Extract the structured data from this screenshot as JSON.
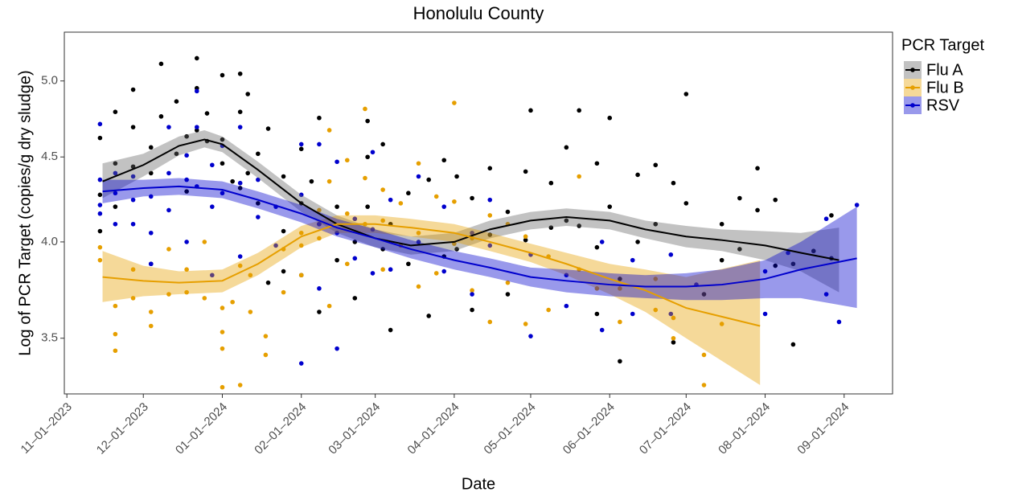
{
  "chart_data": {
    "type": "scatter",
    "title": "Honolulu County",
    "x_label": "Date",
    "y_label": "Log of PCR Target (copies/g dry sludge)",
    "legend_title": "PCR Target",
    "legend_position": "right",
    "log_y": true,
    "grid": false,
    "xlim": [
      "2023-10-31",
      "2024-09-20"
    ],
    "ylim": [
      3.24,
      5.35
    ],
    "xticks": [
      {
        "value": "2023-11-01",
        "label": "11–01–2023"
      },
      {
        "value": "2023-12-01",
        "label": "12–01–2023"
      },
      {
        "value": "2024-01-01",
        "label": "01–01–2024"
      },
      {
        "value": "2024-02-01",
        "label": "02–01–2024"
      },
      {
        "value": "2024-03-01",
        "label": "03–01–2024"
      },
      {
        "value": "2024-04-01",
        "label": "04–01–2024"
      },
      {
        "value": "2024-05-01",
        "label": "05–01–2024"
      },
      {
        "value": "2024-06-01",
        "label": "06–01–2024"
      },
      {
        "value": "2024-07-01",
        "label": "07–01–2024"
      },
      {
        "value": "2024-08-01",
        "label": "08–01–2024"
      },
      {
        "value": "2024-09-01",
        "label": "09–01–2024"
      }
    ],
    "yticks": [
      3.5,
      {
        "value": 4,
        "label": "4.0"
      },
      4.5,
      {
        "value": 5,
        "label": "5.0"
      }
    ],
    "series": [
      {
        "name": "Flu A",
        "color": "#000000",
        "x": [
          "2023-11-14",
          "2023-11-14",
          "2023-11-14",
          "2023-11-20",
          "2023-11-20",
          "2023-11-20",
          "2023-11-27",
          "2023-11-27",
          "2023-11-27",
          "2023-12-04",
          "2023-12-04",
          "2023-12-04",
          "2023-12-08",
          "2023-12-08",
          "2023-12-14",
          "2023-12-14",
          "2023-12-18",
          "2023-12-18",
          "2023-12-22",
          "2023-12-22",
          "2023-12-22",
          "2023-12-26",
          "2023-12-26",
          "2024-01-01",
          "2024-01-01",
          "2024-01-01",
          "2024-01-05",
          "2024-01-08",
          "2024-01-08",
          "2024-01-08",
          "2024-01-11",
          "2024-01-11",
          "2024-01-15",
          "2024-01-15",
          "2024-01-19",
          "2024-01-19",
          "2024-01-25",
          "2024-01-25",
          "2024-01-25",
          "2024-02-01",
          "2024-02-01",
          "2024-02-01",
          "2024-02-05",
          "2024-02-08",
          "2024-02-08",
          "2024-02-08",
          "2024-02-15",
          "2024-02-15",
          "2024-02-22",
          "2024-02-22",
          "2024-02-27",
          "2024-02-27",
          "2024-02-27",
          "2024-03-04",
          "2024-03-04",
          "2024-03-07",
          "2024-03-07",
          "2024-03-14",
          "2024-03-14",
          "2024-03-22",
          "2024-03-22",
          "2024-03-28",
          "2024-03-28",
          "2024-04-02",
          "2024-04-02",
          "2024-04-08",
          "2024-04-08",
          "2024-04-15",
          "2024-04-15",
          "2024-04-22",
          "2024-04-22",
          "2024-04-29",
          "2024-04-29",
          "2024-05-01",
          "2024-05-09",
          "2024-05-09",
          "2024-05-15",
          "2024-05-15",
          "2024-05-20",
          "2024-05-20",
          "2024-05-27",
          "2024-05-27",
          "2024-05-27",
          "2024-06-01",
          "2024-06-01",
          "2024-06-05",
          "2024-06-05",
          "2024-06-12",
          "2024-06-12",
          "2024-06-19",
          "2024-06-19",
          "2024-06-26",
          "2024-06-26",
          "2024-07-01",
          "2024-07-01",
          "2024-07-08",
          "2024-07-15",
          "2024-07-15",
          "2024-07-22",
          "2024-07-22",
          "2024-07-29",
          "2024-07-29",
          "2024-08-05",
          "2024-08-05",
          "2024-08-12",
          "2024-08-12",
          "2024-08-20",
          "2024-08-27",
          "2024-08-27"
        ],
        "values": [
          4.62,
          4.27,
          4.06,
          4.79,
          4.46,
          4.2,
          4.94,
          4.69,
          4.44,
          4.56,
          4.4,
          3.88,
          5.12,
          4.76,
          4.86,
          4.52,
          4.63,
          4.29,
          5.16,
          4.95,
          4.67,
          4.78,
          4.6,
          5.04,
          4.61,
          4.46,
          4.35,
          5.05,
          4.79,
          4.31,
          4.91,
          4.4,
          4.52,
          4.22,
          4.68,
          3.78,
          4.38,
          4.06,
          3.84,
          4.55,
          4.22,
          3.82,
          4.35,
          4.75,
          4.1,
          3.63,
          4.2,
          3.9,
          4.0,
          3.7,
          4.73,
          4.5,
          4.2,
          4.58,
          3.96,
          4.1,
          3.54,
          4.28,
          3.88,
          4.36,
          3.61,
          4.48,
          3.92,
          4.38,
          3.96,
          4.25,
          3.64,
          4.43,
          4.04,
          4.17,
          3.72,
          4.41,
          4.01,
          4.8,
          4.34,
          4.08,
          4.56,
          4.12,
          4.8,
          4.09,
          4.46,
          3.97,
          3.62,
          4.75,
          4.2,
          3.8,
          3.39,
          4.39,
          4.0,
          4.45,
          4.1,
          4.34,
          3.48,
          4.91,
          4.22,
          3.72,
          4.1,
          3.9,
          4.25,
          3.96,
          4.43,
          4.18,
          4.24,
          3.87,
          3.88,
          3.47,
          3.95,
          4.15,
          3.91
        ],
        "trend": {
          "x": [
            "2023-11-15",
            "2023-12-01",
            "2023-12-15",
            "2023-12-25",
            "2024-01-01",
            "2024-01-15",
            "2024-02-01",
            "2024-02-15",
            "2024-03-01",
            "2024-03-15",
            "2024-04-01",
            "2024-04-15",
            "2024-05-01",
            "2024-05-15",
            "2024-06-01",
            "2024-06-15",
            "2024-07-01",
            "2024-07-15",
            "2024-08-01",
            "2024-08-15",
            "2024-08-30"
          ],
          "values": [
            4.35,
            4.45,
            4.57,
            4.61,
            4.58,
            4.42,
            4.22,
            4.1,
            4.02,
            3.98,
            4.0,
            4.07,
            4.12,
            4.14,
            4.12,
            4.07,
            4.03,
            4.01,
            3.98,
            3.94,
            3.9
          ],
          "lower": [
            4.25,
            4.38,
            4.51,
            4.56,
            4.53,
            4.37,
            4.17,
            4.05,
            3.97,
            3.93,
            3.95,
            4.02,
            4.07,
            4.09,
            4.07,
            4.02,
            3.97,
            3.95,
            3.9,
            3.84,
            3.73
          ],
          "upper": [
            4.46,
            4.52,
            4.63,
            4.67,
            4.63,
            4.47,
            4.27,
            4.15,
            4.07,
            4.03,
            4.05,
            4.12,
            4.17,
            4.19,
            4.17,
            4.12,
            4.09,
            4.07,
            4.06,
            4.05,
            4.08
          ]
        }
      },
      {
        "name": "Flu B",
        "color": "#e69f00",
        "x": [
          "2023-11-14",
          "2023-11-14",
          "2023-11-20",
          "2023-11-20",
          "2023-11-20",
          "2023-11-27",
          "2023-11-27",
          "2023-12-04",
          "2023-12-04",
          "2023-12-11",
          "2023-12-11",
          "2023-12-18",
          "2023-12-18",
          "2023-12-25",
          "2023-12-25",
          "2024-01-01",
          "2024-01-01",
          "2024-01-01",
          "2024-01-01",
          "2024-01-05",
          "2024-01-08",
          "2024-01-08",
          "2024-01-12",
          "2024-01-12",
          "2024-01-18",
          "2024-01-18",
          "2024-01-25",
          "2024-01-25",
          "2024-02-01",
          "2024-02-01",
          "2024-02-01",
          "2024-02-08",
          "2024-02-08",
          "2024-02-12",
          "2024-02-12",
          "2024-02-12",
          "2024-02-19",
          "2024-02-19",
          "2024-02-19",
          "2024-02-26",
          "2024-02-26",
          "2024-02-26",
          "2024-03-04",
          "2024-03-04",
          "2024-03-04",
          "2024-03-11",
          "2024-03-11",
          "2024-03-18",
          "2024-03-18",
          "2024-03-18",
          "2024-03-25",
          "2024-03-25",
          "2024-04-01",
          "2024-04-01",
          "2024-04-01",
          "2024-04-08",
          "2024-04-08",
          "2024-04-15",
          "2024-04-15",
          "2024-04-22",
          "2024-04-22",
          "2024-04-29",
          "2024-04-29",
          "2024-05-08",
          "2024-05-08",
          "2024-05-20",
          "2024-05-20",
          "2024-05-27",
          "2024-06-05",
          "2024-06-05",
          "2024-06-19",
          "2024-06-19",
          "2024-06-26",
          "2024-06-26",
          "2024-07-08",
          "2024-07-08",
          "2024-07-15"
        ],
        "values": [
          3.97,
          3.9,
          3.66,
          3.52,
          3.44,
          3.85,
          3.7,
          3.63,
          3.56,
          3.72,
          3.96,
          3.73,
          3.85,
          4.0,
          3.7,
          3.65,
          3.45,
          3.53,
          3.27,
          3.68,
          3.87,
          3.28,
          3.82,
          3.63,
          3.51,
          3.42,
          3.73,
          3.96,
          4.05,
          3.98,
          3.82,
          4.18,
          4.02,
          4.67,
          4.35,
          3.66,
          4.48,
          3.88,
          4.16,
          4.81,
          4.37,
          4.1,
          4.3,
          4.12,
          3.85,
          4.22,
          3.98,
          4.46,
          4.05,
          3.76,
          4.26,
          3.83,
          4.85,
          4.23,
          3.99,
          4.02,
          3.74,
          4.15,
          3.58,
          4.1,
          3.78,
          4.03,
          3.57,
          3.92,
          3.64,
          4.38,
          3.85,
          3.75,
          3.75,
          3.58,
          3.64,
          3.8,
          3.6,
          3.5,
          3.42,
          3.28,
          3.57
        ],
        "trend": {
          "x": [
            "2023-11-15",
            "2023-12-01",
            "2023-12-15",
            "2024-01-01",
            "2024-01-15",
            "2024-02-01",
            "2024-02-15",
            "2024-03-01",
            "2024-03-15",
            "2024-04-01",
            "2024-04-15",
            "2024-05-01",
            "2024-05-15",
            "2024-06-01",
            "2024-06-15",
            "2024-07-01",
            "2024-07-30"
          ],
          "values": [
            3.81,
            3.79,
            3.78,
            3.79,
            3.88,
            4.03,
            4.1,
            4.1,
            4.08,
            4.05,
            4.0,
            3.94,
            3.88,
            3.8,
            3.74,
            3.65,
            3.56
          ],
          "lower": [
            3.68,
            3.71,
            3.72,
            3.73,
            3.82,
            3.97,
            4.05,
            4.05,
            4.03,
            4.0,
            3.95,
            3.89,
            3.82,
            3.72,
            3.63,
            3.5,
            3.28
          ],
          "upper": [
            3.95,
            3.87,
            3.84,
            3.85,
            3.94,
            4.09,
            4.15,
            4.15,
            4.13,
            4.1,
            4.05,
            3.99,
            3.94,
            3.88,
            3.85,
            3.81,
            3.9
          ]
        }
      },
      {
        "name": "RSV",
        "color": "#0000cd",
        "x": [
          "2023-11-14",
          "2023-11-14",
          "2023-11-14",
          "2023-11-14",
          "2023-11-20",
          "2023-11-20",
          "2023-11-20",
          "2023-11-27",
          "2023-11-27",
          "2023-11-27",
          "2023-12-04",
          "2023-12-04",
          "2023-12-04",
          "2023-12-11",
          "2023-12-11",
          "2023-12-11",
          "2023-12-18",
          "2023-12-18",
          "2023-12-18",
          "2023-12-22",
          "2023-12-22",
          "2023-12-22",
          "2023-12-28",
          "2023-12-28",
          "2023-12-28",
          "2024-01-01",
          "2024-01-01",
          "2024-01-08",
          "2024-01-08",
          "2024-01-08",
          "2024-01-15",
          "2024-01-15",
          "2024-01-22",
          "2024-01-22",
          "2024-02-01",
          "2024-02-01",
          "2024-02-01",
          "2024-02-08",
          "2024-02-08",
          "2024-02-08",
          "2024-02-15",
          "2024-02-15",
          "2024-02-15",
          "2024-02-22",
          "2024-02-22",
          "2024-02-29",
          "2024-02-29",
          "2024-02-29",
          "2024-03-07",
          "2024-03-07",
          "2024-03-18",
          "2024-03-18",
          "2024-03-28",
          "2024-03-28",
          "2024-04-08",
          "2024-04-08",
          "2024-04-15",
          "2024-04-15",
          "2024-05-01",
          "2024-05-01",
          "2024-05-15",
          "2024-05-15",
          "2024-05-29",
          "2024-05-29",
          "2024-06-10",
          "2024-06-10",
          "2024-06-25",
          "2024-06-25",
          "2024-07-05",
          "2024-08-01",
          "2024-08-01",
          "2024-08-10",
          "2024-08-25",
          "2024-08-25",
          "2024-08-30",
          "2024-09-06"
        ],
        "values": [
          4.71,
          4.36,
          4.21,
          4.16,
          4.4,
          4.28,
          4.1,
          4.38,
          4.24,
          4.1,
          4.26,
          4.05,
          3.88,
          4.69,
          4.4,
          4.18,
          4.51,
          4.36,
          4.0,
          4.93,
          4.69,
          4.32,
          4.45,
          4.2,
          3.82,
          4.57,
          4.28,
          4.69,
          4.34,
          3.92,
          4.36,
          4.14,
          4.2,
          3.98,
          4.58,
          4.27,
          3.38,
          4.58,
          4.1,
          3.75,
          4.47,
          4.05,
          3.45,
          4.13,
          3.91,
          4.53,
          4.07,
          3.83,
          4.24,
          3.85,
          4.38,
          4.0,
          4.2,
          3.84,
          4.05,
          3.72,
          4.24,
          3.98,
          3.93,
          3.51,
          3.82,
          3.66,
          4.0,
          3.54,
          3.9,
          3.62,
          3.93,
          3.62,
          3.77,
          3.84,
          3.62,
          3.94,
          4.13,
          3.72,
          3.58,
          4.21
        ],
        "trend": {
          "x": [
            "2023-11-15",
            "2023-12-01",
            "2023-12-15",
            "2024-01-01",
            "2024-01-15",
            "2024-02-01",
            "2024-02-15",
            "2024-03-01",
            "2024-03-15",
            "2024-04-01",
            "2024-04-15",
            "2024-05-01",
            "2024-05-15",
            "2024-06-01",
            "2024-06-15",
            "2024-07-01",
            "2024-07-15",
            "2024-08-01",
            "2024-08-15",
            "2024-09-06"
          ],
          "values": [
            4.29,
            4.31,
            4.32,
            4.3,
            4.24,
            4.16,
            4.08,
            4.02,
            3.96,
            3.9,
            3.86,
            3.81,
            3.79,
            3.77,
            3.76,
            3.76,
            3.77,
            3.8,
            3.85,
            3.91
          ],
          "lower": [
            4.22,
            4.26,
            4.27,
            4.25,
            4.19,
            4.11,
            4.03,
            3.97,
            3.91,
            3.85,
            3.81,
            3.76,
            3.73,
            3.71,
            3.7,
            3.69,
            3.69,
            3.7,
            3.7,
            3.65
          ],
          "upper": [
            4.36,
            4.36,
            4.37,
            4.35,
            4.29,
            4.21,
            4.13,
            4.07,
            4.01,
            3.95,
            3.91,
            3.86,
            3.85,
            3.83,
            3.82,
            3.83,
            3.85,
            3.9,
            4.0,
            4.2
          ]
        }
      }
    ]
  }
}
